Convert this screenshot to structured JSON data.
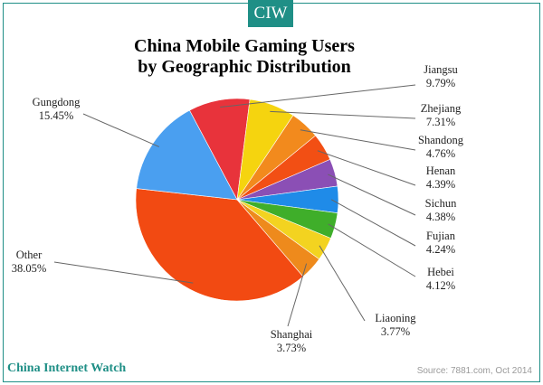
{
  "badge": {
    "text": "CIW"
  },
  "footer": {
    "brand": "China Internet Watch",
    "source": "Source: 7881.com, Oct 2014"
  },
  "chart_data": {
    "type": "pie",
    "title": [
      "China Mobile Gaming Users",
      "by Geographic Distribution"
    ],
    "slices": [
      {
        "label": "Jiangsu",
        "pct_text": "9.79%",
        "value": 9.79,
        "color": "#e8333b"
      },
      {
        "label": "Zhejiang",
        "pct_text": "7.31%",
        "value": 7.31,
        "color": "#f5d40f"
      },
      {
        "label": "Shandong",
        "pct_text": "4.76%",
        "value": 4.76,
        "color": "#f28a1d"
      },
      {
        "label": "Henan",
        "pct_text": "4.39%",
        "value": 4.39,
        "color": "#f24f14"
      },
      {
        "label": "Sichun",
        "pct_text": "4.38%",
        "value": 4.38,
        "color": "#8b4fb5"
      },
      {
        "label": "Fujian",
        "pct_text": "4.24%",
        "value": 4.24,
        "color": "#1f8be8"
      },
      {
        "label": "Hebei",
        "pct_text": "4.12%",
        "value": 4.12,
        "color": "#3fae2a"
      },
      {
        "label": "Liaoning",
        "pct_text": "3.77%",
        "value": 3.77,
        "color": "#f3d320"
      },
      {
        "label": "Shanghai",
        "pct_text": "3.73%",
        "value": 3.73,
        "color": "#ee8a1c"
      },
      {
        "label": "Other",
        "pct_text": "38.05%",
        "value": 38.05,
        "color": "#f24a12"
      },
      {
        "label": "Gungdong",
        "pct_text": "15.45%",
        "value": 15.45,
        "color": "#4a9ff0"
      }
    ]
  }
}
